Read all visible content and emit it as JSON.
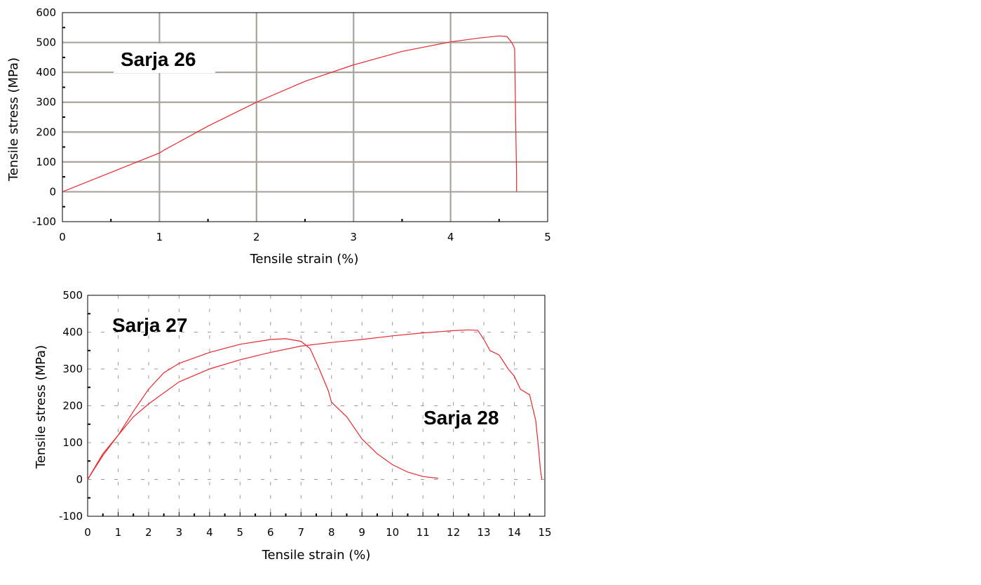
{
  "chart_data": [
    {
      "type": "line",
      "xlabel": "Tensile strain (%)",
      "ylabel": "Tensile stress (MPa)",
      "xlim": [
        0,
        5
      ],
      "ylim": [
        -100,
        600
      ],
      "x_ticks": [
        "0",
        "1",
        "2",
        "3",
        "4",
        "5"
      ],
      "y_ticks": [
        "-100",
        "0",
        "100",
        "200",
        "300",
        "400",
        "500",
        "600"
      ],
      "grid": true,
      "series": [
        {
          "name": "Sarja 26",
          "color": "#e8282d",
          "x": [
            0,
            0.5,
            1.0,
            1.05,
            1.5,
            2.0,
            2.5,
            3.0,
            3.5,
            4.0,
            4.3,
            4.5,
            4.58,
            4.63,
            4.66,
            4.67,
            4.68,
            4.68
          ],
          "y": [
            0,
            65,
            130,
            140,
            220,
            300,
            370,
            425,
            470,
            502,
            515,
            522,
            520,
            500,
            480,
            250,
            50,
            0
          ]
        }
      ],
      "annotations": [
        {
          "text": "Sarja 26",
          "series": 0
        }
      ]
    },
    {
      "type": "line",
      "xlabel": "Tensile strain (%)",
      "ylabel": "Tensile stress (MPa)",
      "xlim": [
        0,
        15
      ],
      "ylim": [
        -100,
        500
      ],
      "x_ticks": [
        "0",
        "1",
        "2",
        "3",
        "4",
        "5",
        "6",
        "7",
        "8",
        "9",
        "10",
        "11",
        "12",
        "13",
        "14",
        "15"
      ],
      "y_ticks": [
        "-100",
        "0",
        "100",
        "200",
        "300",
        "400",
        "500"
      ],
      "grid": "dashed",
      "series": [
        {
          "name": "Sarja 27",
          "color": "#e8282d",
          "x": [
            0,
            0.5,
            1,
            1.5,
            2,
            2.5,
            3,
            4,
            5,
            6,
            6.5,
            7,
            7.3,
            7.6,
            7.9,
            8,
            8.5,
            9,
            9.5,
            10,
            10.5,
            11,
            11.5
          ],
          "y": [
            0,
            70,
            120,
            185,
            245,
            290,
            315,
            345,
            367,
            380,
            382,
            375,
            355,
            300,
            240,
            210,
            170,
            110,
            70,
            40,
            20,
            8,
            3
          ]
        },
        {
          "name": "Sarja 28",
          "color": "#e8282d",
          "x": [
            0,
            0.5,
            1,
            1.5,
            2,
            3,
            4,
            5,
            6,
            7,
            8,
            9,
            10,
            11,
            12,
            12.5,
            12.8,
            13.0,
            13.2,
            13.5,
            13.8,
            14.0,
            14.2,
            14.5,
            14.7,
            14.8,
            14.85,
            14.9
          ],
          "y": [
            0,
            65,
            120,
            170,
            205,
            265,
            300,
            325,
            345,
            362,
            372,
            380,
            390,
            398,
            404,
            406,
            405,
            380,
            350,
            338,
            300,
            280,
            245,
            230,
            160,
            80,
            30,
            0
          ]
        }
      ],
      "annotations": [
        {
          "text": "Sarja 27",
          "series": 0
        },
        {
          "text": "Sarja 28",
          "series": 1
        }
      ]
    }
  ]
}
